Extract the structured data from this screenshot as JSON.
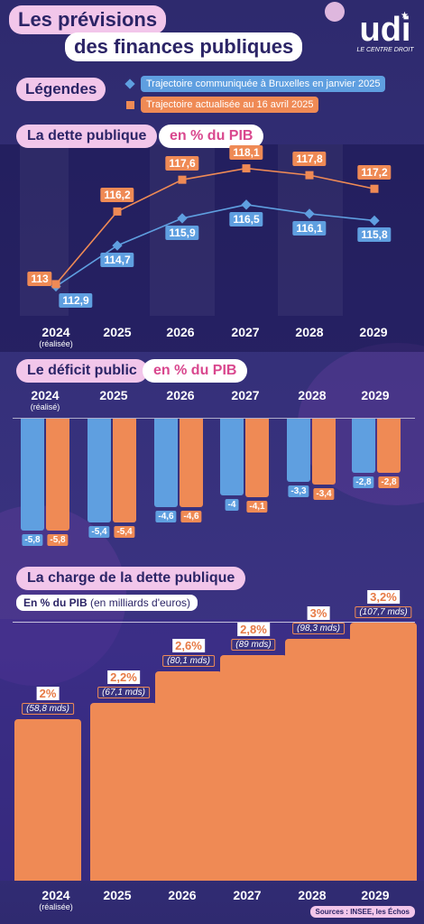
{
  "header": {
    "title_line1": "Les prévisions",
    "title_line2": "des finances publiques",
    "logo_text": "udi",
    "logo_tagline": "LE CENTRE DROIT"
  },
  "legend": {
    "title": "Légendes",
    "items": [
      {
        "label": "Trajectoire communiquée à Bruxelles en janvier 2025",
        "color": "#5f9fe0",
        "icon": "diamond-marker"
      },
      {
        "label": "Trajectoire actualisée au 16 avril 2025",
        "color": "#ef8a55",
        "icon": "square-marker"
      }
    ]
  },
  "years": [
    "2024",
    "2025",
    "2026",
    "2027",
    "2028",
    "2029"
  ],
  "realised_note": "(réalisée)",
  "realised_note_alt": "(réalisé)",
  "chart_data": [
    {
      "type": "line",
      "title": "La dette publique",
      "unit": "en % du PIB",
      "x": [
        "2024",
        "2025",
        "2026",
        "2027",
        "2028",
        "2029"
      ],
      "series": [
        {
          "name": "Trajectoire communiquée à Bruxelles en janvier 2025",
          "color": "#5f9fe0",
          "values": [
            112.9,
            114.7,
            115.9,
            116.5,
            116.1,
            115.8
          ],
          "labels": [
            "112,9",
            "114,7",
            "115,9",
            "116,5",
            "116,1",
            "115,8"
          ]
        },
        {
          "name": "Trajectoire actualisée au 16 avril 2025",
          "color": "#ef8a55",
          "values": [
            113,
            116.2,
            117.6,
            118.1,
            117.8,
            117.2
          ],
          "labels": [
            "113",
            "116,2",
            "117,6",
            "118,1",
            "117,8",
            "117,2"
          ]
        }
      ],
      "ylim": [
        112.4,
        118.6
      ]
    },
    {
      "type": "bar",
      "title": "Le déficit public",
      "unit": "en % du PIB",
      "categories": [
        "2024",
        "2025",
        "2026",
        "2027",
        "2028",
        "2029"
      ],
      "series": [
        {
          "name": "Trajectoire communiquée à Bruxelles en janvier 2025",
          "color": "#5f9fe0",
          "values": [
            -5.8,
            -5.4,
            -4.6,
            -4,
            -3.3,
            -2.8
          ],
          "labels": [
            "-5,8",
            "-5,4",
            "-4,6",
            "-4",
            "-3,3",
            "-2,8"
          ]
        },
        {
          "name": "Trajectoire actualisée au 16 avril 2025",
          "color": "#ef8a55",
          "values": [
            -5.8,
            -5.4,
            -4.6,
            -4.1,
            -3.4,
            -2.8
          ],
          "labels": [
            "-5,8",
            "-5,4",
            "-4,6",
            "-4,1",
            "-3,4",
            "-2,8"
          ]
        }
      ],
      "ylim": [
        -6,
        0
      ]
    },
    {
      "type": "bar",
      "title": "La charge de la dette publique",
      "subtitle_bold": "En % du PIB",
      "subtitle_rest": "(en milliards d'euros)",
      "categories": [
        "2024",
        "2025",
        "2026",
        "2027",
        "2028",
        "2029"
      ],
      "values": [
        2,
        2.2,
        2.6,
        2.8,
        3,
        3.2
      ],
      "pct_labels": [
        "2%",
        "2,2%",
        "2,6%",
        "2,8%",
        "3%",
        "3,2%"
      ],
      "amounts": [
        58.8,
        67.1,
        80.1,
        89,
        98.3,
        107.7
      ],
      "amount_labels": [
        "(58,8 mds)",
        "(67,1 mds)",
        "(80,1 mds)",
        "(89 mds)",
        "(98,3 mds)",
        "(107,7 mds)"
      ],
      "color": "#ef8a55",
      "ylim": [
        0,
        3.2
      ]
    }
  ],
  "sources": "Sources : INSEE, les Échos"
}
